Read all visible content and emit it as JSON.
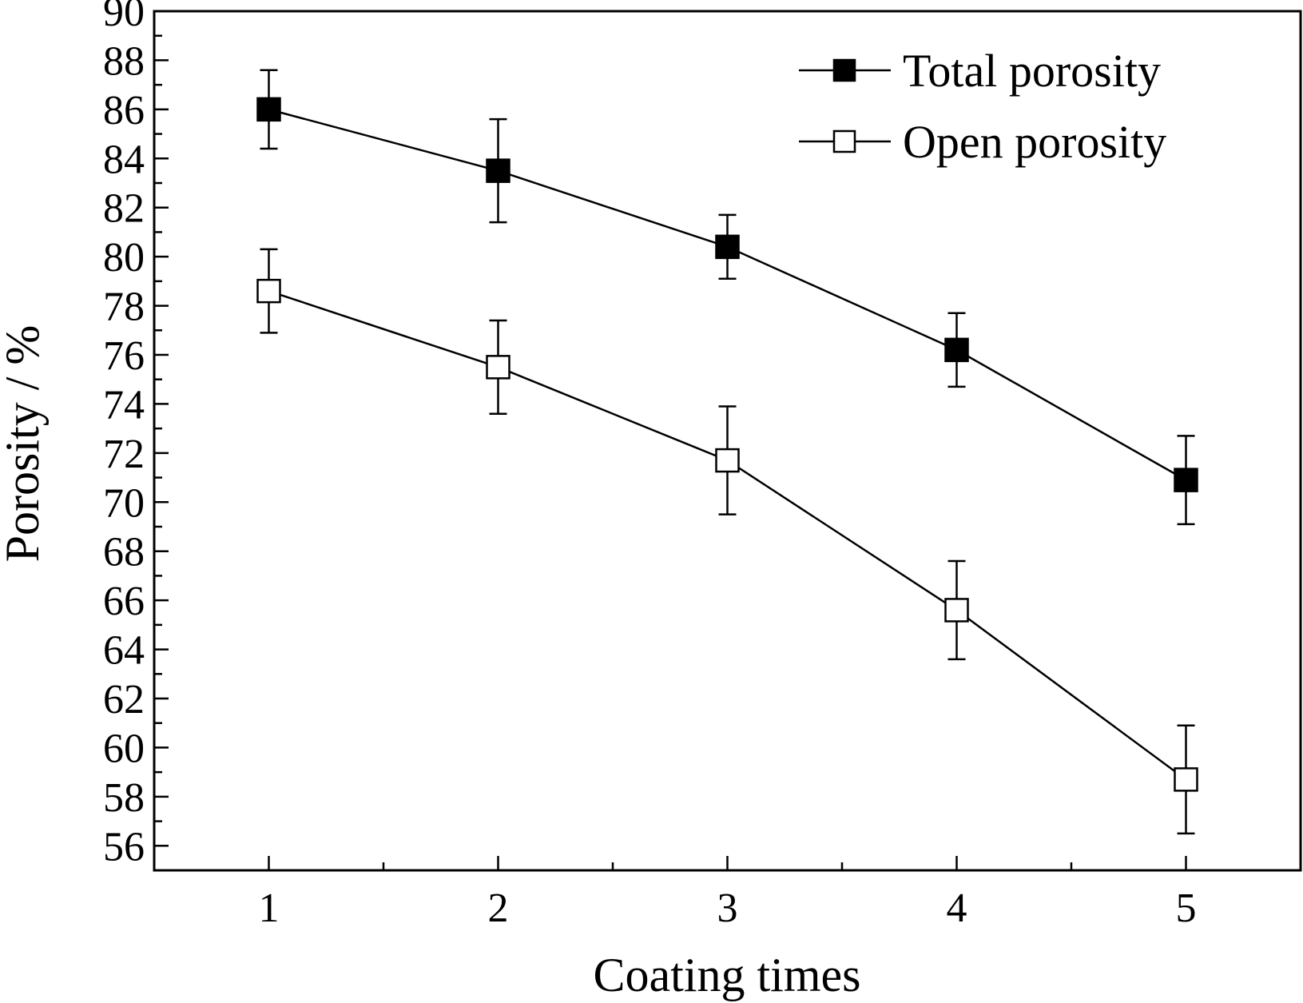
{
  "chart_data": {
    "type": "line",
    "xlabel": "Coating times",
    "ylabel": "Porosity / %",
    "x": [
      1,
      2,
      3,
      4,
      5
    ],
    "xlim": [
      0.5,
      5.5
    ],
    "ylim": [
      55,
      90
    ],
    "xticks": [
      "1",
      "2",
      "3",
      "4",
      "5"
    ],
    "yticks": [
      "56",
      "58",
      "60",
      "62",
      "64",
      "66",
      "68",
      "70",
      "72",
      "74",
      "76",
      "78",
      "80",
      "82",
      "84",
      "86",
      "88",
      "90"
    ],
    "grid": false,
    "legend_position": "top-right",
    "series": [
      {
        "name": "Total porosity",
        "marker": "filled-square",
        "color": "#000000",
        "values": [
          86.0,
          83.5,
          80.4,
          76.2,
          70.9
        ],
        "error": [
          1.6,
          2.1,
          1.3,
          1.5,
          1.8
        ]
      },
      {
        "name": "Open porosity",
        "marker": "open-square",
        "color": "#000000",
        "values": [
          78.6,
          75.5,
          71.7,
          65.6,
          58.7
        ],
        "error": [
          1.7,
          1.9,
          2.2,
          2.0,
          2.2
        ]
      }
    ]
  }
}
